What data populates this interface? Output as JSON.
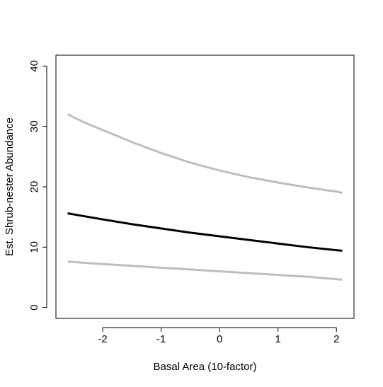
{
  "chart_data": {
    "type": "line",
    "title": "",
    "xlabel": "Basal Area (10-factor)",
    "ylabel": "Est. Shrub-nester Abundance",
    "xlim": [
      -2.8,
      2.3
    ],
    "ylim": [
      -1.8,
      41.8
    ],
    "xticks": [
      -2,
      -1,
      0,
      1,
      2
    ],
    "yticks": [
      0,
      10,
      20,
      30,
      40
    ],
    "grid": false,
    "legend": "none",
    "series": [
      {
        "role": "upper-bound",
        "color": "#bebebe",
        "x": [
          -2.6,
          -2.3,
          -2,
          -1.5,
          -1,
          -0.5,
          0,
          0.5,
          1,
          1.5,
          2,
          2.1
        ],
        "y": [
          32.0,
          30.6,
          29.4,
          27.4,
          25.6,
          24.0,
          22.7,
          21.6,
          20.7,
          19.9,
          19.2,
          19.0
        ]
      },
      {
        "role": "estimate",
        "color": "#000000",
        "x": [
          -2.6,
          -2.3,
          -2,
          -1.5,
          -1,
          -0.5,
          0,
          0.5,
          1,
          1.5,
          2,
          2.1
        ],
        "y": [
          15.6,
          15.1,
          14.6,
          13.8,
          13.1,
          12.4,
          11.8,
          11.2,
          10.6,
          10.0,
          9.5,
          9.4
        ]
      },
      {
        "role": "lower-bound",
        "color": "#bebebe",
        "x": [
          -2.6,
          -2.3,
          -2,
          -1.5,
          -1,
          -0.5,
          0,
          0.5,
          1,
          1.5,
          2,
          2.1
        ],
        "y": [
          7.6,
          7.4,
          7.2,
          6.9,
          6.6,
          6.3,
          6.0,
          5.7,
          5.4,
          5.1,
          4.7,
          4.6
        ]
      }
    ]
  }
}
